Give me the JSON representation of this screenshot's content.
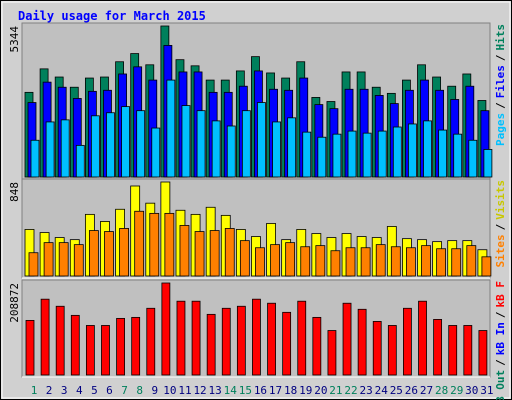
{
  "legend_separator": "/",
  "chart_data": [
    {
      "type": "bar",
      "title": "Daily usage for March 2015",
      "ylim": [
        0,
        5344
      ],
      "yticks": [
        5344
      ],
      "series": [
        {
          "name": "Hits",
          "color": "#00805c",
          "values": [
            2996,
            3827,
            3538,
            3177,
            3502,
            3538,
            4079,
            4368,
            3971,
            5344,
            4152,
            3935,
            3430,
            3430,
            3754,
            4260,
            3682,
            3502,
            4079,
            2816,
            2671,
            3718,
            3718,
            3177,
            2960,
            3430,
            3971,
            3538,
            3213,
            3646,
            2708
          ]
        },
        {
          "name": "Files",
          "color": "#0000ff",
          "values": [
            2635,
            3357,
            3177,
            2780,
            3032,
            3069,
            3646,
            3899,
            3430,
            4657,
            3718,
            3718,
            2996,
            2996,
            3213,
            3754,
            3105,
            3069,
            3502,
            2563,
            2419,
            3105,
            3105,
            2888,
            2599,
            3069,
            3430,
            3069,
            2744,
            3213,
            2347
          ]
        },
        {
          "name": "Pages",
          "color": "#00c0ff",
          "values": [
            1300,
            1949,
            2022,
            1119,
            2166,
            2274,
            2491,
            2347,
            1733,
            3430,
            2527,
            2347,
            1986,
            1805,
            2347,
            2635,
            1949,
            2094,
            1588,
            1408,
            1516,
            1625,
            1552,
            1625,
            1769,
            1877,
            1986,
            1661,
            1516,
            1300,
            975
          ]
        }
      ]
    },
    {
      "type": "bar",
      "ylim": [
        0,
        848
      ],
      "yticks": [
        848
      ],
      "series": [
        {
          "name": "Visits",
          "color": "#ffff00",
          "text_color": "#c8c800",
          "values": [
            420,
            392,
            347,
            328,
            556,
            492,
            602,
            812,
            657,
            848,
            593,
            556,
            620,
            547,
            420,
            356,
            474,
            328,
            420,
            383,
            347,
            383,
            356,
            347,
            447,
            337,
            328,
            310,
            319,
            319,
            237
          ]
        },
        {
          "name": "Sites",
          "color": "#ff8000",
          "values": [
            210,
            301,
            301,
            283,
            410,
            401,
            429,
            584,
            565,
            565,
            456,
            401,
            410,
            429,
            319,
            255,
            283,
            301,
            264,
            274,
            228,
            255,
            255,
            283,
            264,
            255,
            274,
            246,
            246,
            274,
            173
          ]
        }
      ]
    },
    {
      "type": "bar",
      "ylim": [
        0,
        208872
      ],
      "yticks": [
        208872
      ],
      "categories": [
        "1",
        "2",
        "3",
        "4",
        "5",
        "6",
        "7",
        "8",
        "9",
        "10",
        "11",
        "12",
        "13",
        "14",
        "15",
        "16",
        "17",
        "18",
        "19",
        "20",
        "21",
        "22",
        "23",
        "24",
        "25",
        "26",
        "27",
        "28",
        "29",
        "30",
        "31"
      ],
      "category_colors": [
        "#00805c",
        "#000080",
        "#000080",
        "#000080",
        "#000080",
        "#000080",
        "#00805c",
        "#00805c",
        "#000080",
        "#000080",
        "#000080",
        "#000080",
        "#000080",
        "#00805c",
        "#00805c",
        "#000080",
        "#000080",
        "#000080",
        "#000080",
        "#000080",
        "#00805c",
        "#00805c",
        "#000080",
        "#000080",
        "#000080",
        "#000080",
        "#000080",
        "#00805c",
        "#00805c",
        "#000080",
        "#000080"
      ],
      "series": [
        {
          "name": "kB F",
          "color": "#ff0000",
          "values": [
            123930,
            172125,
            156060,
            135405,
            112455,
            112455,
            128520,
            130815,
            151470,
            208872,
            167535,
            167535,
            137700,
            151470,
            156060,
            172125,
            162945,
            142290,
            167535,
            130815,
            100980,
            162945,
            149175,
            121635,
            112455,
            151470,
            167535,
            126225,
            112455,
            112455,
            100980
          ]
        },
        {
          "name": "kB In",
          "color": "#0000ff"
        },
        {
          "name": "kB Out",
          "color": "#00805c"
        }
      ]
    }
  ]
}
